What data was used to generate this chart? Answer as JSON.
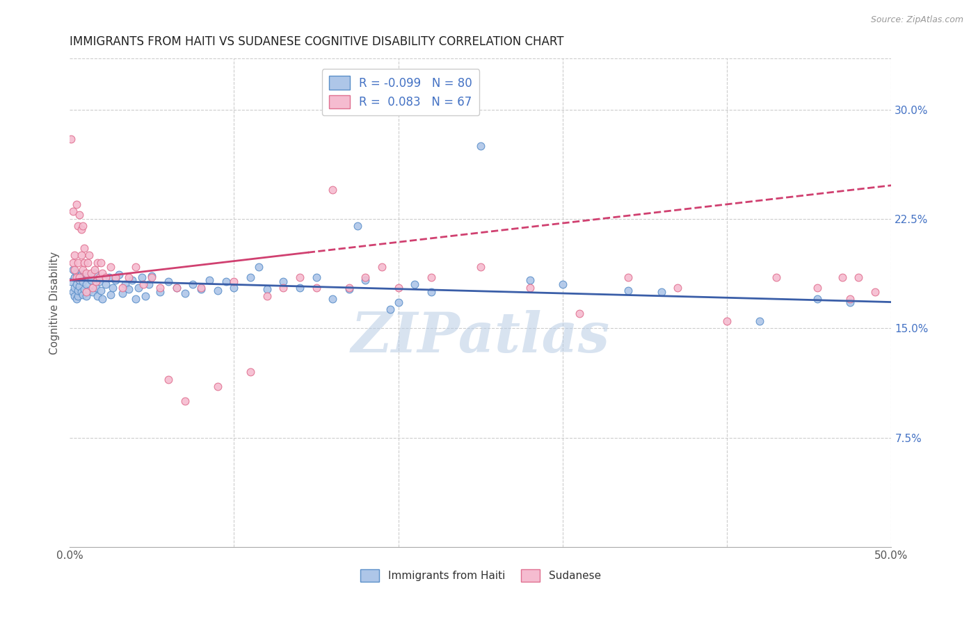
{
  "title": "IMMIGRANTS FROM HAITI VS SUDANESE COGNITIVE DISABILITY CORRELATION CHART",
  "source": "Source: ZipAtlas.com",
  "ylabel": "Cognitive Disability",
  "xlim": [
    0.0,
    0.5
  ],
  "ylim": [
    0.0,
    0.335
  ],
  "yticks_right": [
    0.075,
    0.15,
    0.225,
    0.3
  ],
  "yticklabels_right": [
    "7.5%",
    "15.0%",
    "22.5%",
    "30.0%"
  ],
  "haiti_color": "#aec6e8",
  "haiti_edge_color": "#5b8fc9",
  "sudanese_color": "#f5bcd0",
  "sudanese_edge_color": "#e07090",
  "haiti_R": -0.099,
  "haiti_N": 80,
  "sudanese_R": 0.083,
  "sudanese_N": 67,
  "haiti_line_color": "#3a5ea8",
  "sudanese_line_color": "#d04070",
  "legend_text_color": "#4472c4",
  "watermark": "ZIPatlas",
  "watermark_color": "#b8cce4",
  "haiti_line_x0": 0.0,
  "haiti_line_y0": 0.183,
  "haiti_line_x1": 0.5,
  "haiti_line_y1": 0.168,
  "sudanese_line_solid_x0": 0.0,
  "sudanese_line_solid_y0": 0.183,
  "sudanese_line_solid_x1": 0.145,
  "sudanese_line_solid_y1": 0.202,
  "sudanese_line_dashed_x0": 0.145,
  "sudanese_line_dashed_y0": 0.202,
  "sudanese_line_dashed_x1": 0.5,
  "sudanese_line_dashed_y1": 0.248,
  "haiti_scatter_x": [
    0.001,
    0.002,
    0.002,
    0.003,
    0.003,
    0.003,
    0.004,
    0.004,
    0.004,
    0.005,
    0.005,
    0.005,
    0.006,
    0.006,
    0.007,
    0.007,
    0.008,
    0.008,
    0.009,
    0.009,
    0.01,
    0.01,
    0.011,
    0.012,
    0.013,
    0.014,
    0.015,
    0.016,
    0.017,
    0.018,
    0.019,
    0.02,
    0.022,
    0.024,
    0.025,
    0.026,
    0.028,
    0.03,
    0.032,
    0.034,
    0.036,
    0.038,
    0.04,
    0.042,
    0.044,
    0.046,
    0.048,
    0.05,
    0.055,
    0.06,
    0.065,
    0.07,
    0.075,
    0.08,
    0.085,
    0.09,
    0.095,
    0.1,
    0.11,
    0.115,
    0.12,
    0.13,
    0.14,
    0.15,
    0.16,
    0.17,
    0.175,
    0.18,
    0.195,
    0.2,
    0.21,
    0.22,
    0.25,
    0.28,
    0.3,
    0.34,
    0.36,
    0.42,
    0.455,
    0.475
  ],
  "haiti_scatter_y": [
    0.182,
    0.19,
    0.175,
    0.185,
    0.178,
    0.172,
    0.188,
    0.17,
    0.18,
    0.185,
    0.172,
    0.176,
    0.179,
    0.183,
    0.187,
    0.175,
    0.182,
    0.173,
    0.188,
    0.177,
    0.18,
    0.172,
    0.185,
    0.176,
    0.183,
    0.175,
    0.188,
    0.178,
    0.172,
    0.182,
    0.176,
    0.17,
    0.18,
    0.185,
    0.173,
    0.178,
    0.183,
    0.187,
    0.174,
    0.18,
    0.177,
    0.183,
    0.17,
    0.178,
    0.185,
    0.172,
    0.18,
    0.186,
    0.175,
    0.182,
    0.178,
    0.174,
    0.18,
    0.177,
    0.183,
    0.176,
    0.182,
    0.178,
    0.185,
    0.192,
    0.177,
    0.182,
    0.178,
    0.185,
    0.17,
    0.177,
    0.22,
    0.183,
    0.163,
    0.168,
    0.18,
    0.175,
    0.275,
    0.183,
    0.18,
    0.176,
    0.175,
    0.155,
    0.17,
    0.168
  ],
  "sudanese_scatter_x": [
    0.001,
    0.002,
    0.002,
    0.003,
    0.003,
    0.004,
    0.004,
    0.005,
    0.005,
    0.006,
    0.006,
    0.007,
    0.007,
    0.008,
    0.008,
    0.009,
    0.009,
    0.01,
    0.01,
    0.011,
    0.012,
    0.013,
    0.014,
    0.015,
    0.016,
    0.017,
    0.018,
    0.019,
    0.02,
    0.022,
    0.025,
    0.028,
    0.032,
    0.036,
    0.04,
    0.045,
    0.05,
    0.055,
    0.06,
    0.065,
    0.07,
    0.08,
    0.09,
    0.1,
    0.11,
    0.12,
    0.13,
    0.14,
    0.15,
    0.16,
    0.17,
    0.18,
    0.19,
    0.2,
    0.22,
    0.25,
    0.28,
    0.31,
    0.34,
    0.37,
    0.4,
    0.43,
    0.455,
    0.47,
    0.475,
    0.48,
    0.49
  ],
  "sudanese_scatter_y": [
    0.28,
    0.195,
    0.23,
    0.2,
    0.19,
    0.235,
    0.185,
    0.22,
    0.195,
    0.228,
    0.185,
    0.218,
    0.2,
    0.19,
    0.22,
    0.205,
    0.195,
    0.188,
    0.175,
    0.195,
    0.2,
    0.188,
    0.178,
    0.19,
    0.182,
    0.195,
    0.185,
    0.195,
    0.188,
    0.185,
    0.192,
    0.185,
    0.178,
    0.185,
    0.192,
    0.18,
    0.185,
    0.178,
    0.115,
    0.178,
    0.1,
    0.178,
    0.11,
    0.182,
    0.12,
    0.172,
    0.178,
    0.185,
    0.178,
    0.245,
    0.178,
    0.185,
    0.192,
    0.178,
    0.185,
    0.192,
    0.178,
    0.16,
    0.185,
    0.178,
    0.155,
    0.185,
    0.178,
    0.185,
    0.17,
    0.185,
    0.175
  ]
}
